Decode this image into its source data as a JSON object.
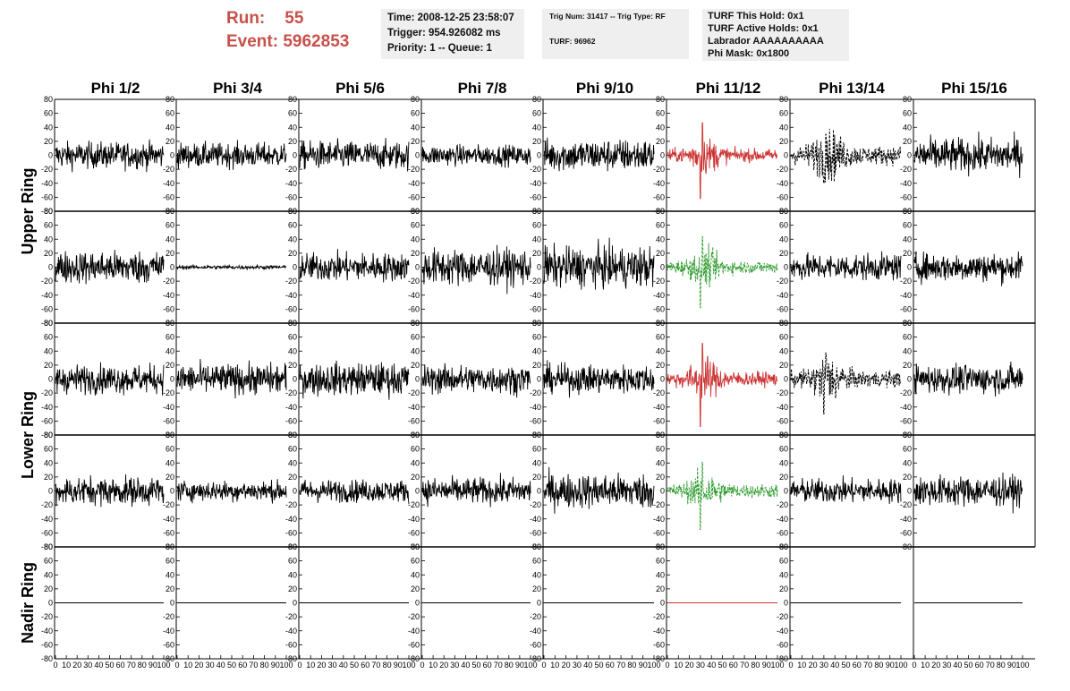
{
  "header": {
    "run_label": "Run:",
    "run_value": "55",
    "event_label": "Event:",
    "event_value": "5962853"
  },
  "info_box_1": {
    "time": "Time: 2008-12-25 23:58:07",
    "trigger": "Trigger: 954.926082 ms",
    "priority": "Priority: 1 -- Queue: 1"
  },
  "info_box_2": {
    "trig": "Trig Num: 31417 -- Trig Type: RF",
    "turf": "TURF: 96962"
  },
  "info_box_3": {
    "hold": "TURF This Hold: 0x1",
    "active": "TURF Active Holds: 0x1",
    "labrador": "Labrador AAAAAAAAAA",
    "phimask": "Phi Mask: 0x1800"
  },
  "colors": {
    "trigger_red": "#cc3333",
    "trigger_green": "#2e9b2e",
    "trace_black": "#000000",
    "header_red": "#c8504a",
    "info_bg": "#efefef"
  },
  "chart_data": {
    "type": "line",
    "description_units": "waveform amplitude vs sample index",
    "columns": [
      "Phi 1/2",
      "Phi 3/4",
      "Phi 5/6",
      "Phi 7/8",
      "Phi 9/10",
      "Phi 11/12",
      "Phi 13/14",
      "Phi 15/16"
    ],
    "row_groups": [
      "Upper Ring",
      "Lower Ring",
      "Nadir Ring"
    ],
    "rows": [
      {
        "group": "Upper Ring",
        "index": 0
      },
      {
        "group": "Upper Ring",
        "index": 1
      },
      {
        "group": "Lower Ring",
        "index": 0
      },
      {
        "group": "Lower Ring",
        "index": 1
      },
      {
        "group": "Nadir Ring",
        "index": 0
      }
    ],
    "xlim": [
      0,
      100
    ],
    "ylim": [
      -80,
      80
    ],
    "x_ticks": [
      0,
      10,
      20,
      30,
      40,
      50,
      60,
      70,
      80,
      90,
      100
    ],
    "y_ticks": [
      -80,
      -60,
      -40,
      -20,
      0,
      20,
      40,
      60,
      80
    ],
    "nadir_columns_with_axis": [
      true,
      true,
      true,
      true,
      true,
      true,
      true,
      false
    ],
    "panels": [
      {
        "row": 0,
        "col": 0,
        "style": "noise",
        "amp": 13,
        "color": "black"
      },
      {
        "row": 0,
        "col": 1,
        "style": "noise",
        "amp": 12,
        "color": "black"
      },
      {
        "row": 0,
        "col": 2,
        "style": "noise",
        "amp": 14,
        "color": "black"
      },
      {
        "row": 0,
        "col": 3,
        "style": "noise",
        "amp": 10,
        "color": "black"
      },
      {
        "row": 0,
        "col": 4,
        "style": "noise",
        "amp": 16,
        "color": "black"
      },
      {
        "row": 0,
        "col": 5,
        "style": "pulse",
        "amp": 14,
        "peak": 62,
        "color": "red"
      },
      {
        "row": 0,
        "col": 6,
        "style": "dashed-pulse",
        "amp": 20,
        "peak": 40,
        "color": "black"
      },
      {
        "row": 0,
        "col": 7,
        "style": "noise",
        "amp": 17,
        "color": "black"
      },
      {
        "row": 1,
        "col": 0,
        "style": "noise",
        "amp": 16,
        "color": "black"
      },
      {
        "row": 1,
        "col": 1,
        "style": "noise",
        "amp": 2,
        "color": "black"
      },
      {
        "row": 1,
        "col": 2,
        "style": "noise",
        "amp": 14,
        "color": "black"
      },
      {
        "row": 1,
        "col": 3,
        "style": "noise",
        "amp": 18,
        "color": "black"
      },
      {
        "row": 1,
        "col": 4,
        "style": "noise",
        "amp": 20,
        "color": "black"
      },
      {
        "row": 1,
        "col": 5,
        "style": "dashed-pulse",
        "amp": 14,
        "peak": 58,
        "color": "green"
      },
      {
        "row": 1,
        "col": 6,
        "style": "noise",
        "amp": 13,
        "color": "black"
      },
      {
        "row": 1,
        "col": 7,
        "style": "noise",
        "amp": 14,
        "color": "black"
      },
      {
        "row": 2,
        "col": 0,
        "style": "noise",
        "amp": 14,
        "color": "black"
      },
      {
        "row": 2,
        "col": 1,
        "style": "noise",
        "amp": 15,
        "color": "black"
      },
      {
        "row": 2,
        "col": 2,
        "style": "noise",
        "amp": 16,
        "color": "black"
      },
      {
        "row": 2,
        "col": 3,
        "style": "noise",
        "amp": 14,
        "color": "black"
      },
      {
        "row": 2,
        "col": 4,
        "style": "noise",
        "amp": 14,
        "color": "black"
      },
      {
        "row": 2,
        "col": 5,
        "style": "pulse",
        "amp": 16,
        "peak": 68,
        "color": "red"
      },
      {
        "row": 2,
        "col": 6,
        "style": "dashed-pulse",
        "amp": 18,
        "peak": 50,
        "color": "black"
      },
      {
        "row": 2,
        "col": 7,
        "style": "noise",
        "amp": 14,
        "color": "black"
      },
      {
        "row": 3,
        "col": 0,
        "style": "noise",
        "amp": 14,
        "color": "black"
      },
      {
        "row": 3,
        "col": 1,
        "style": "noise",
        "amp": 10,
        "color": "black"
      },
      {
        "row": 3,
        "col": 2,
        "style": "noise",
        "amp": 11,
        "color": "black"
      },
      {
        "row": 3,
        "col": 3,
        "style": "noise",
        "amp": 13,
        "color": "black"
      },
      {
        "row": 3,
        "col": 4,
        "style": "noise",
        "amp": 17,
        "color": "black"
      },
      {
        "row": 3,
        "col": 5,
        "style": "dashed-pulse",
        "amp": 15,
        "peak": 55,
        "color": "green"
      },
      {
        "row": 3,
        "col": 6,
        "style": "noise",
        "amp": 12,
        "color": "black"
      },
      {
        "row": 3,
        "col": 7,
        "style": "noise",
        "amp": 15,
        "color": "black"
      },
      {
        "row": 4,
        "col": 0,
        "style": "flat",
        "amp": 0,
        "color": "black"
      },
      {
        "row": 4,
        "col": 1,
        "style": "flat",
        "amp": 0,
        "color": "black"
      },
      {
        "row": 4,
        "col": 2,
        "style": "flat",
        "amp": 0,
        "color": "black"
      },
      {
        "row": 4,
        "col": 3,
        "style": "flat",
        "amp": 0,
        "color": "black"
      },
      {
        "row": 4,
        "col": 4,
        "style": "flat",
        "amp": 0,
        "color": "black"
      },
      {
        "row": 4,
        "col": 5,
        "style": "flat",
        "amp": 0,
        "color": "red"
      },
      {
        "row": 4,
        "col": 6,
        "style": "flat",
        "amp": 0,
        "color": "black"
      },
      {
        "row": 4,
        "col": 7,
        "style": "flat",
        "amp": 0,
        "color": "black"
      }
    ]
  }
}
